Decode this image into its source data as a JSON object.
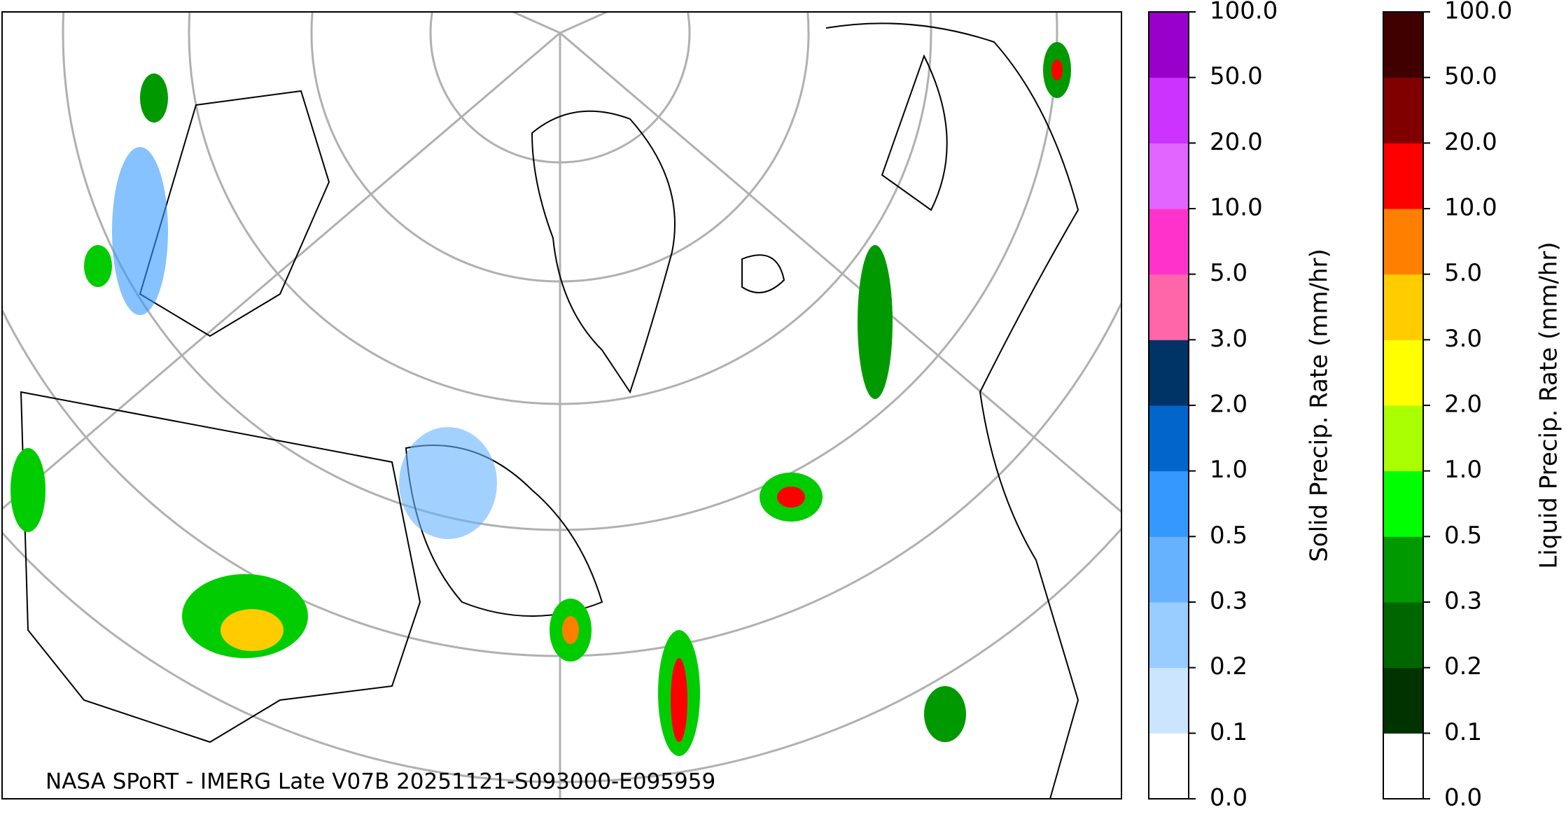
{
  "caption": "NASA SPoRT - IMERG Late V07B 20251121-S093000-E095959",
  "colorbars": [
    {
      "label": "Solid Precip. Rate (mm/hr)",
      "ticks": [
        "0.0",
        "0.1",
        "0.2",
        "0.3",
        "0.5",
        "1.0",
        "2.0",
        "3.0",
        "5.0",
        "10.0",
        "20.0",
        "50.0",
        "100.0"
      ],
      "colors": [
        "#ffffff",
        "#cce5ff",
        "#99ccff",
        "#66b2ff",
        "#3399ff",
        "#0066cc",
        "#003366",
        "#ff66aa",
        "#ff33cc",
        "#e066ff",
        "#cc33ff",
        "#9900cc"
      ]
    },
    {
      "label": "Liquid Precip. Rate (mm/hr)",
      "ticks": [
        "0.0",
        "0.1",
        "0.2",
        "0.3",
        "0.5",
        "1.0",
        "2.0",
        "3.0",
        "5.0",
        "10.0",
        "20.0",
        "50.0",
        "100.0"
      ],
      "colors": [
        "#ffffff",
        "#003300",
        "#006600",
        "#009900",
        "#00ff00",
        "#aaff00",
        "#ffff00",
        "#ffcc00",
        "#ff8000",
        "#ff0000",
        "#800000",
        "#400000"
      ]
    }
  ]
}
